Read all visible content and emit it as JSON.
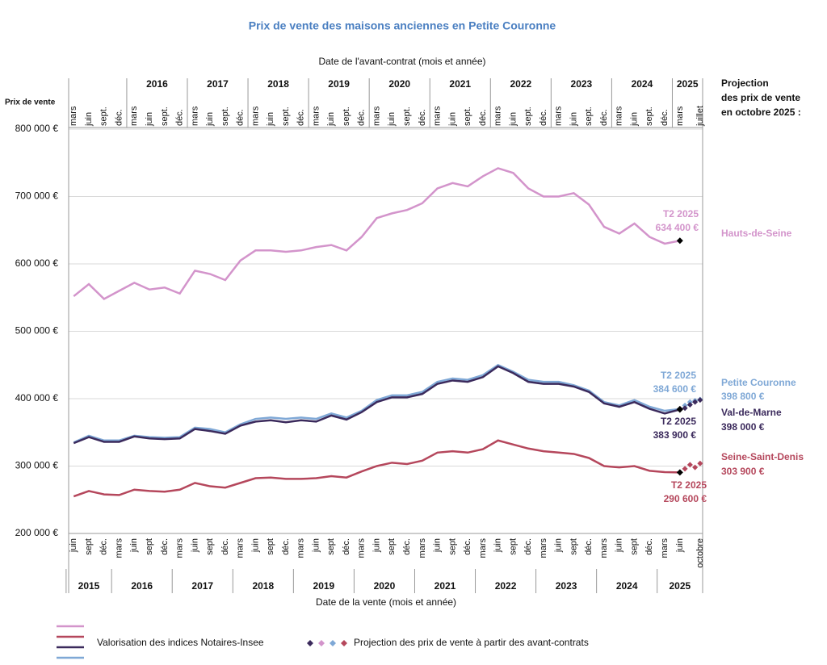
{
  "chart_data": {
    "type": "line",
    "title": "Prix de vente des maisons anciennes en Petite Couronne",
    "x2label": "Date de l'avant-contrat (mois et année)",
    "xlabel": "Date de la vente (mois et année)",
    "ylabel": "Prix de vente",
    "right_header": [
      "Projection",
      "des prix de vente",
      "en octobre 2025 :"
    ],
    "xlim": [
      -1,
      124.5
    ],
    "ylim": [
      200000,
      800000
    ],
    "yticks": [
      {
        "value": 200000,
        "label": "200 000 €"
      },
      {
        "value": 300000,
        "label": "300 000 €"
      },
      {
        "value": 400000,
        "label": "400 000 €"
      },
      {
        "value": 500000,
        "label": "500 000 €"
      },
      {
        "value": 600000,
        "label": "600 000 €"
      },
      {
        "value": 700000,
        "label": "700 000 €"
      },
      {
        "value": 800000,
        "label": "800 000 €"
      }
    ],
    "grid": true,
    "xticks": [
      {
        "value": 0,
        "label": "juin"
      },
      {
        "value": 3,
        "label": "sept"
      },
      {
        "value": 6,
        "label": "déc."
      },
      {
        "value": 9,
        "label": "mars"
      },
      {
        "value": 12,
        "label": "juin"
      },
      {
        "value": 15,
        "label": "sept"
      },
      {
        "value": 18,
        "label": "déc."
      },
      {
        "value": 21,
        "label": "mars"
      },
      {
        "value": 24,
        "label": "juin"
      },
      {
        "value": 27,
        "label": "sept"
      },
      {
        "value": 30,
        "label": "déc."
      },
      {
        "value": 33,
        "label": "mars"
      },
      {
        "value": 36,
        "label": "juin"
      },
      {
        "value": 39,
        "label": "sept"
      },
      {
        "value": 42,
        "label": "déc."
      },
      {
        "value": 45,
        "label": "mars"
      },
      {
        "value": 48,
        "label": "juin"
      },
      {
        "value": 51,
        "label": "sept"
      },
      {
        "value": 54,
        "label": "déc."
      },
      {
        "value": 57,
        "label": "mars"
      },
      {
        "value": 60,
        "label": "juin"
      },
      {
        "value": 63,
        "label": "sept"
      },
      {
        "value": 66,
        "label": "déc."
      },
      {
        "value": 69,
        "label": "mars"
      },
      {
        "value": 72,
        "label": "juin"
      },
      {
        "value": 75,
        "label": "sept"
      },
      {
        "value": 78,
        "label": "déc."
      },
      {
        "value": 81,
        "label": "mars"
      },
      {
        "value": 84,
        "label": "juin"
      },
      {
        "value": 87,
        "label": "sept"
      },
      {
        "value": 90,
        "label": "déc."
      },
      {
        "value": 93,
        "label": "mars"
      },
      {
        "value": 96,
        "label": "juin"
      },
      {
        "value": 99,
        "label": "sept"
      },
      {
        "value": 102,
        "label": "déc."
      },
      {
        "value": 105,
        "label": "mars"
      },
      {
        "value": 108,
        "label": "juin"
      },
      {
        "value": 111,
        "label": "sept"
      },
      {
        "value": 114,
        "label": "déc."
      },
      {
        "value": 117,
        "label": "mars"
      },
      {
        "value": 120,
        "label": "juin"
      },
      {
        "value": 124,
        "label": "octobre"
      }
    ],
    "x2ticks": [
      {
        "value": 0,
        "label": "mars"
      },
      {
        "value": 3,
        "label": "juin"
      },
      {
        "value": 6,
        "label": "sept."
      },
      {
        "value": 9,
        "label": "déc."
      },
      {
        "value": 12,
        "label": "mars"
      },
      {
        "value": 15,
        "label": "juin"
      },
      {
        "value": 18,
        "label": "sept."
      },
      {
        "value": 21,
        "label": "déc."
      },
      {
        "value": 24,
        "label": "mars"
      },
      {
        "value": 27,
        "label": "juin"
      },
      {
        "value": 30,
        "label": "sept."
      },
      {
        "value": 33,
        "label": "déc."
      },
      {
        "value": 36,
        "label": "mars"
      },
      {
        "value": 39,
        "label": "juin"
      },
      {
        "value": 42,
        "label": "sept."
      },
      {
        "value": 45,
        "label": "déc."
      },
      {
        "value": 48,
        "label": "mars"
      },
      {
        "value": 51,
        "label": "juin"
      },
      {
        "value": 54,
        "label": "sept."
      },
      {
        "value": 57,
        "label": "déc."
      },
      {
        "value": 60,
        "label": "mars"
      },
      {
        "value": 63,
        "label": "juin"
      },
      {
        "value": 66,
        "label": "sept."
      },
      {
        "value": 69,
        "label": "déc."
      },
      {
        "value": 72,
        "label": "mars"
      },
      {
        "value": 75,
        "label": "juin"
      },
      {
        "value": 78,
        "label": "sept."
      },
      {
        "value": 81,
        "label": "déc."
      },
      {
        "value": 84,
        "label": "mars"
      },
      {
        "value": 87,
        "label": "juin"
      },
      {
        "value": 90,
        "label": "sept."
      },
      {
        "value": 93,
        "label": "déc."
      },
      {
        "value": 96,
        "label": "mars"
      },
      {
        "value": 99,
        "label": "juin"
      },
      {
        "value": 102,
        "label": "sept."
      },
      {
        "value": 105,
        "label": "déc."
      },
      {
        "value": 108,
        "label": "mars"
      },
      {
        "value": 111,
        "label": "juin"
      },
      {
        "value": 114,
        "label": "sept."
      },
      {
        "value": 117,
        "label": "déc."
      },
      {
        "value": 120,
        "label": "mars"
      },
      {
        "value": 124,
        "label": "juillet"
      }
    ],
    "xyears": [
      {
        "label": "2015",
        "start": -1.5,
        "end": 7.5
      },
      {
        "label": "2016",
        "start": 7.5,
        "end": 19.5
      },
      {
        "label": "2017",
        "start": 19.5,
        "end": 31.5
      },
      {
        "label": "2018",
        "start": 31.5,
        "end": 43.5
      },
      {
        "label": "2019",
        "start": 43.5,
        "end": 55.5
      },
      {
        "label": "2020",
        "start": 55.5,
        "end": 67.5
      },
      {
        "label": "2021",
        "start": 67.5,
        "end": 79.5
      },
      {
        "label": "2022",
        "start": 79.5,
        "end": 91.5
      },
      {
        "label": "2023",
        "start": 91.5,
        "end": 103.5
      },
      {
        "label": "2024",
        "start": 103.5,
        "end": 115.5
      },
      {
        "label": "2025",
        "start": 115.5,
        "end": 124.5
      }
    ],
    "x2years": [
      {
        "label": "2016",
        "start": 10.5,
        "end": 22.5
      },
      {
        "label": "2017",
        "start": 22.5,
        "end": 34.5
      },
      {
        "label": "2018",
        "start": 34.5,
        "end": 46.5
      },
      {
        "label": "2019",
        "start": 46.5,
        "end": 58.5
      },
      {
        "label": "2020",
        "start": 58.5,
        "end": 70.5
      },
      {
        "label": "2021",
        "start": 70.5,
        "end": 82.5
      },
      {
        "label": "2022",
        "start": 82.5,
        "end": 94.5
      },
      {
        "label": "2023",
        "start": 94.5,
        "end": 106.5
      },
      {
        "label": "2024",
        "start": 106.5,
        "end": 118.5
      },
      {
        "label": "2025",
        "start": 118.5,
        "end": 124.5
      }
    ],
    "x": [
      0,
      3,
      6,
      9,
      12,
      15,
      18,
      21,
      24,
      27,
      30,
      33,
      36,
      39,
      42,
      45,
      48,
      51,
      54,
      57,
      60,
      63,
      66,
      69,
      72,
      75,
      78,
      81,
      84,
      87,
      90,
      93,
      96,
      99,
      102,
      105,
      108,
      111,
      114,
      117,
      120
    ],
    "projection_x": [
      121,
      122,
      123,
      124
    ],
    "series": [
      {
        "name": "Hauts-de-Seine",
        "color": "#d394cb",
        "period_label": "T2 2025",
        "value_label": "634 400 €",
        "values": [
          552000,
          570000,
          548000,
          560000,
          572000,
          562000,
          565000,
          556000,
          590000,
          585000,
          576000,
          605000,
          620000,
          620000,
          618000,
          620000,
          625000,
          628000,
          620000,
          640000,
          668000,
          675000,
          680000,
          690000,
          712000,
          720000,
          715000,
          730000,
          742000,
          735000,
          712000,
          700000,
          700000,
          705000,
          688000,
          655000,
          645000,
          660000,
          640000,
          630000,
          634400
        ]
      },
      {
        "name": "Petite Couronne",
        "color": "#7fa8d6",
        "period_label": "T2 2025",
        "value_label": "384 600 €",
        "projection_label": "398 800 €",
        "values": [
          335000,
          345000,
          338000,
          338000,
          345000,
          343000,
          342000,
          343000,
          357000,
          355000,
          350000,
          362000,
          370000,
          372000,
          370000,
          372000,
          370000,
          378000,
          372000,
          382000,
          398000,
          405000,
          405000,
          410000,
          425000,
          430000,
          428000,
          435000,
          450000,
          440000,
          428000,
          425000,
          425000,
          420000,
          412000,
          395000,
          390000,
          398000,
          388000,
          382000,
          384600
        ],
        "projection_values": [
          390000,
          395000,
          397000,
          398800
        ]
      },
      {
        "name": "Val-de-Marne",
        "color": "#3b2a5c",
        "period_label": "T2 2025",
        "value_label": "383 900 €",
        "projection_label": "398 000 €",
        "values": [
          334000,
          343000,
          336000,
          336000,
          344000,
          341000,
          340000,
          341000,
          355000,
          352000,
          348000,
          360000,
          366000,
          368000,
          365000,
          368000,
          366000,
          375000,
          369000,
          380000,
          395000,
          402000,
          402000,
          407000,
          422000,
          427000,
          425000,
          432000,
          448000,
          438000,
          425000,
          422000,
          422000,
          418000,
          410000,
          393000,
          388000,
          395000,
          385000,
          378000,
          383900
        ],
        "projection_values": [
          386000,
          391000,
          395000,
          398000
        ]
      },
      {
        "name": "Seine-Saint-Denis",
        "color": "#b5475c",
        "period_label": "T2 2025",
        "value_label": "290 600 €",
        "projection_label": "303 900 €",
        "values": [
          255000,
          263000,
          258000,
          257000,
          265000,
          263000,
          262000,
          265000,
          275000,
          270000,
          268000,
          275000,
          282000,
          283000,
          281000,
          281000,
          282000,
          285000,
          283000,
          292000,
          300000,
          305000,
          303000,
          308000,
          320000,
          322000,
          320000,
          325000,
          338000,
          332000,
          326000,
          322000,
          320000,
          318000,
          312000,
          300000,
          298000,
          300000,
          293000,
          291000,
          290600
        ],
        "projection_values": [
          296000,
          302000,
          298000,
          303900
        ]
      }
    ],
    "legend": {
      "line_label": "Valorisation des indices Notaires-Insee",
      "projection_label": "Projection des prix de vente à partir des avant-contrats"
    }
  }
}
